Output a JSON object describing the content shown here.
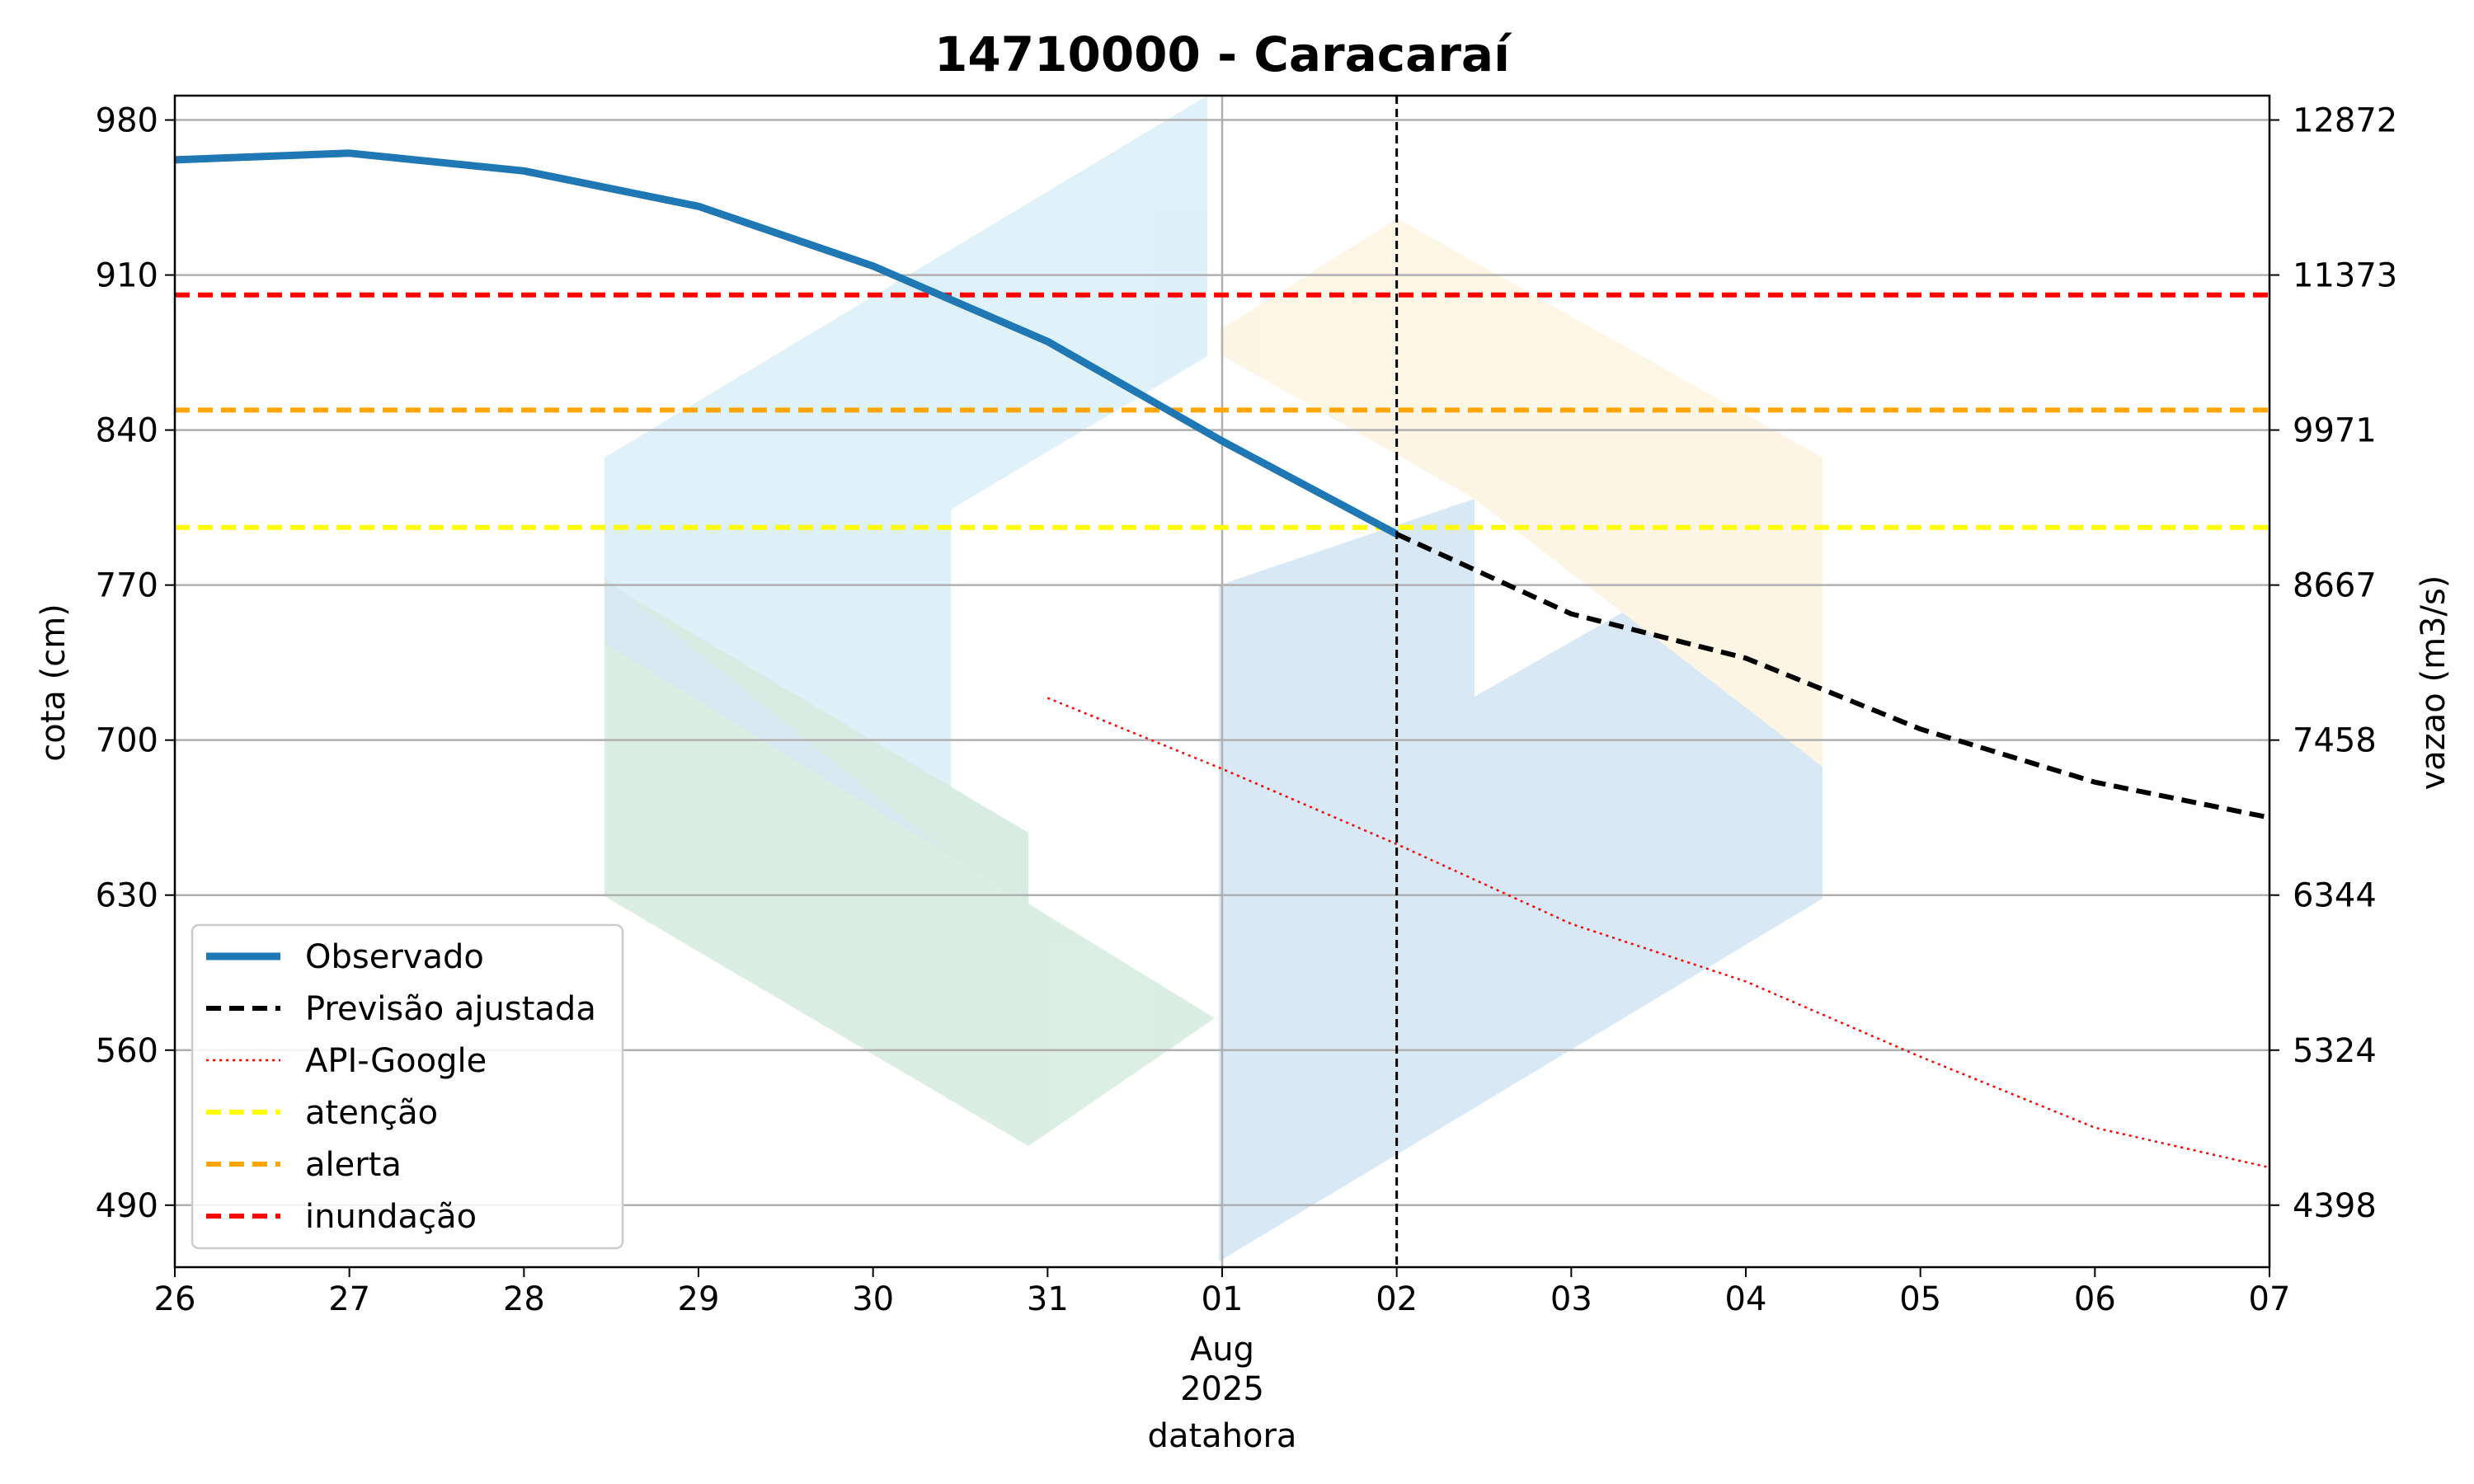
{
  "chart_data": {
    "type": "line",
    "title": "14710000 - Caracaraí",
    "xlabel": "datahora",
    "ylabel": "cota (cm)",
    "ylabel_right": "vazao (m3/s)",
    "x_ticks": [
      "26",
      "27",
      "28",
      "29",
      "30",
      "31",
      "01",
      "02",
      "03",
      "04",
      "05",
      "06",
      "07"
    ],
    "x_tick_dates": [
      "2025-07-26",
      "2025-07-27",
      "2025-07-28",
      "2025-07-29",
      "2025-07-30",
      "2025-07-31",
      "2025-08-01",
      "2025-08-02",
      "2025-08-03",
      "2025-08-04",
      "2025-08-05",
      "2025-08-06",
      "2025-08-07"
    ],
    "x_month_label": "Aug",
    "x_year_label": "2025",
    "xlim": [
      "2025-07-26",
      "2025-08-07"
    ],
    "y_ticks": [
      490,
      560,
      630,
      700,
      770,
      840,
      910,
      980
    ],
    "ylim": [
      462,
      991
    ],
    "y_right_ticks": [
      {
        "cota": 490,
        "label": "4398"
      },
      {
        "cota": 560,
        "label": "5324"
      },
      {
        "cota": 630,
        "label": "6344"
      },
      {
        "cota": 700,
        "label": "7458"
      },
      {
        "cota": 770,
        "label": "8667"
      },
      {
        "cota": 840,
        "label": "9971"
      },
      {
        "cota": 910,
        "label": "11373"
      },
      {
        "cota": 980,
        "label": "12872"
      }
    ],
    "grid": true,
    "legend_position": "lower-left",
    "vline_date": "2025-08-02",
    "series": [
      {
        "name": "Observado",
        "color": "#1f77b4",
        "style": "solid",
        "x": [
          "2025-07-26",
          "2025-07-27",
          "2025-07-28",
          "2025-07-29",
          "2025-07-30",
          "2025-07-31",
          "2025-08-01",
          "2025-08-02"
        ],
        "y": [
          962,
          965,
          957,
          941,
          914,
          880,
          835,
          793
        ]
      },
      {
        "name": "Previsão ajustada",
        "color": "#000000",
        "style": "dashed",
        "x": [
          "2025-08-02",
          "2025-08-03",
          "2025-08-04",
          "2025-08-05",
          "2025-08-06",
          "2025-08-07"
        ],
        "y": [
          793,
          757,
          737,
          705,
          681,
          665
        ]
      },
      {
        "name": "API-Google",
        "color": "#ff0000",
        "style": "dotted",
        "x": [
          "2025-07-31",
          "2025-08-01",
          "2025-08-02",
          "2025-08-03",
          "2025-08-04",
          "2025-08-05",
          "2025-08-06",
          "2025-08-07"
        ],
        "y": [
          719,
          687,
          653,
          617,
          591,
          557,
          525,
          507
        ]
      },
      {
        "name": "atenção",
        "color": "#ffff00",
        "style": "dashed",
        "x": [
          "2025-07-26",
          "2025-08-07"
        ],
        "y": [
          796,
          796
        ]
      },
      {
        "name": "alerta",
        "color": "#ffa500",
        "style": "dashed",
        "x": [
          "2025-07-26",
          "2025-08-07"
        ],
        "y": [
          849,
          849
        ]
      },
      {
        "name": "inundação",
        "color": "#ff0000",
        "style": "dashed",
        "x": [
          "2025-07-26",
          "2025-08-07"
        ],
        "y": [
          901,
          901
        ]
      }
    ]
  }
}
